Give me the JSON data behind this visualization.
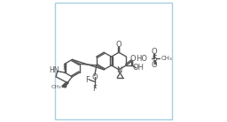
{
  "title": "",
  "bg_color": "#ffffff",
  "border_color": "#a8d0e0",
  "line_color": "#555555",
  "text_color": "#555555",
  "fig_width": 2.56,
  "fig_height": 1.38,
  "dpi": 100,
  "atoms": {
    "NH": "HN",
    "O_ketone": "O",
    "O_acid": "O",
    "OH_acid": "OH",
    "N_quinoline": "N",
    "F1": "F",
    "O_difluoro": "O",
    "F2": "F",
    "HO_mesylate": "HO",
    "S_mesylate": "S",
    "O_top": "O",
    "O_bottom": "O",
    "CH3": "CH₃"
  }
}
